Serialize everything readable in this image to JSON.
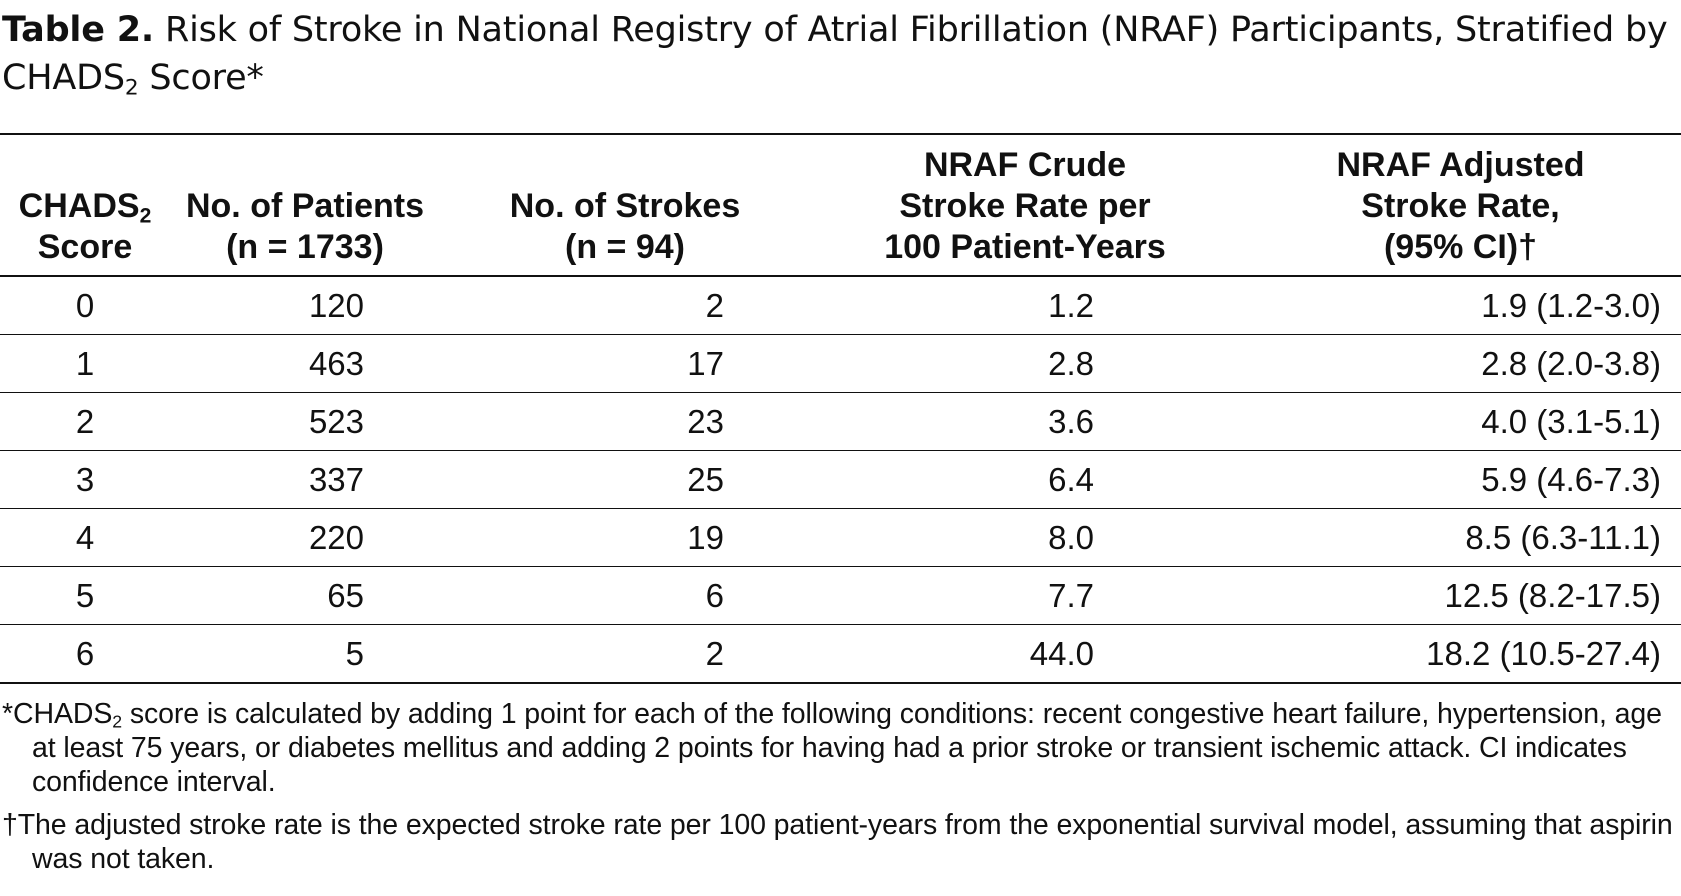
{
  "title": {
    "label": "Table 2.",
    "text_before_sub": "Risk of Stroke in National Registry of Atrial Fibrillation (NRAF) Participants, Stratified by CHADS",
    "sub": "2",
    "text_after_sub": " Score*"
  },
  "table": {
    "headers": {
      "score_line1": "CHADS",
      "score_sub": "2",
      "score_line2": "Score",
      "patients_line1": "No. of Patients",
      "patients_line2": "(n = 1733)",
      "strokes_line1": "No. of Strokes",
      "strokes_line2": "(n = 94)",
      "crude_line1": "NRAF Crude",
      "crude_line2": "Stroke Rate per",
      "crude_line3": "100 Patient-Years",
      "adjusted_line1": "NRAF Adjusted",
      "adjusted_line2": "Stroke Rate,",
      "adjusted_line3": "(95% CI)†"
    },
    "rows": [
      {
        "score": "0",
        "patients": "120",
        "strokes": "2",
        "crude": "1.2",
        "adjusted": "1.9 (1.2-3.0)"
      },
      {
        "score": "1",
        "patients": "463",
        "strokes": "17",
        "crude": "2.8",
        "adjusted": "2.8 (2.0-3.8)"
      },
      {
        "score": "2",
        "patients": "523",
        "strokes": "23",
        "crude": "3.6",
        "adjusted": "4.0 (3.1-5.1)"
      },
      {
        "score": "3",
        "patients": "337",
        "strokes": "25",
        "crude": "6.4",
        "adjusted": "5.9 (4.6-7.3)"
      },
      {
        "score": "4",
        "patients": "220",
        "strokes": "19",
        "crude": "8.0",
        "adjusted": "8.5 (6.3-11.1)"
      },
      {
        "score": "5",
        "patients": "65",
        "strokes": "6",
        "crude": "7.7",
        "adjusted": "12.5 (8.2-17.5)"
      },
      {
        "score": "6",
        "patients": "5",
        "strokes": "2",
        "crude": "44.0",
        "adjusted": "18.2 (10.5-27.4)"
      }
    ]
  },
  "footnotes": {
    "fn1_prefix": "*CHADS",
    "fn1_sub": "2",
    "fn1_text": " score is calculated by adding 1 point for each of the following conditions: recent congestive heart failure, hypertension, age at least 75 years, or diabetes mellitus and adding 2 points for having had a prior stroke or transient ischemic attack. CI indicates confidence interval.",
    "fn2_text": "†The adjusted stroke rate is the expected stroke rate per 100 patient-years from the exponential survival model, assuming that aspirin was not taken."
  }
}
